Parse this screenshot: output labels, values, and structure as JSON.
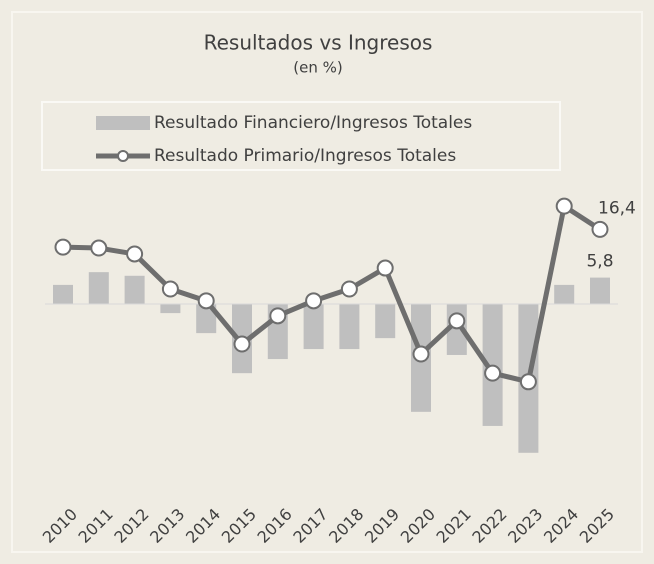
{
  "chart_data": {
    "type": "bar-line",
    "title": "Resultados vs Ingresos",
    "subtitle": "(en %)",
    "categories": [
      "2010",
      "2011",
      "2012",
      "2013",
      "2014",
      "2015",
      "2016",
      "2017",
      "2018",
      "2019",
      "2020",
      "2021",
      "2022",
      "2023",
      "2024",
      "2025"
    ],
    "series": [
      {
        "name": "Resultado Financiero/Ingresos Totales",
        "type": "bar",
        "color": "#bfbfbf",
        "values": [
          4.2,
          7.0,
          6.2,
          -2.0,
          -6.4,
          -15.2,
          -12.1,
          -9.9,
          -9.9,
          -7.5,
          -23.7,
          -11.2,
          -26.8,
          -32.7,
          4.2,
          5.8
        ],
        "value_labels": [
          null,
          null,
          null,
          null,
          null,
          null,
          null,
          null,
          null,
          null,
          null,
          null,
          null,
          null,
          null,
          "5,8"
        ]
      },
      {
        "name": "Resultado Primario/Ingresos Totales",
        "type": "line",
        "color": "#6e6e6e",
        "values": [
          12.5,
          12.3,
          11.0,
          3.3,
          0.7,
          -8.8,
          -2.6,
          0.7,
          3.3,
          7.9,
          -11.0,
          -3.7,
          -15.2,
          -17.1,
          21.5,
          16.4
        ],
        "value_labels": [
          null,
          null,
          null,
          null,
          null,
          null,
          null,
          null,
          null,
          null,
          null,
          null,
          null,
          null,
          null,
          "16,4"
        ]
      }
    ],
    "legend": "top"
  }
}
